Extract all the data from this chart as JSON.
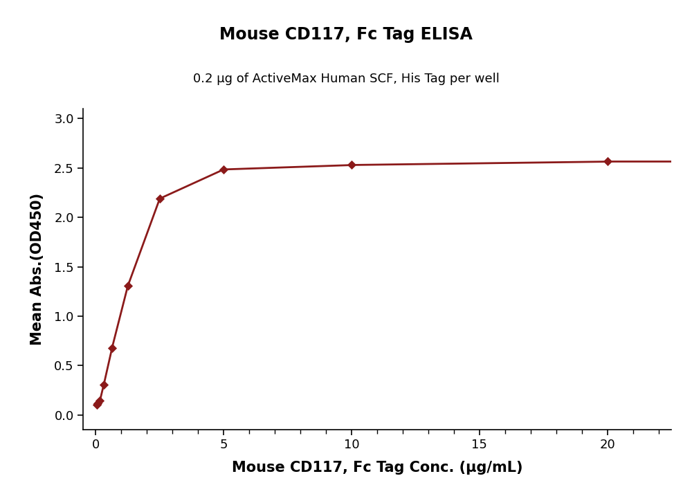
{
  "title": "Mouse CD117, Fc Tag ELISA",
  "subtitle": "0.2 μg of ActiveMax Human SCF, His Tag per well",
  "xlabel": "Mouse CD117, Fc Tag Conc. (μg/mL)",
  "ylabel": "Mean Abs.(OD450)",
  "x_data": [
    0.04,
    0.08,
    0.16,
    0.31,
    0.63,
    1.25,
    2.5,
    5.0,
    10.0,
    20.0
  ],
  "y_data": [
    0.105,
    0.12,
    0.145,
    0.305,
    0.675,
    1.305,
    2.19,
    2.485,
    2.53,
    2.565
  ],
  "xlim": [
    -0.5,
    22.5
  ],
  "ylim": [
    -0.15,
    3.1
  ],
  "yticks": [
    0.0,
    0.5,
    1.0,
    1.5,
    2.0,
    2.5,
    3.0
  ],
  "xticks": [
    0,
    5,
    10,
    15,
    20
  ],
  "line_color": "#8B1A1A",
  "marker_color": "#8B1A1A",
  "background_color": "#ffffff",
  "title_fontsize": 17,
  "subtitle_fontsize": 13,
  "axis_label_fontsize": 15,
  "tick_fontsize": 13
}
